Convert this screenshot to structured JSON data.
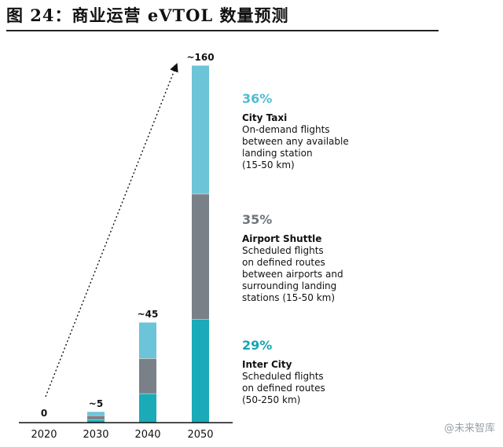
{
  "figure_title": "图 24：商业运营 eVTOL 数量预测",
  "watermark": "@未来智库",
  "colors": {
    "city_taxi": "#6cc4d8",
    "airport_shuttle": "#7a8088",
    "inter_city": "#1aaab8",
    "city_taxi_pct": "#4fbcd1",
    "airport_shuttle_pct": "#6f757d",
    "inter_city_pct": "#14a5b5"
  },
  "segments": [
    {
      "pct": "36%",
      "name": "City Taxi",
      "lines": [
        "On-demand flights",
        "between any available",
        "landing station",
        "(15-50 km)"
      ]
    },
    {
      "pct": "35%",
      "name": "Airport Shuttle",
      "lines": [
        "Scheduled flights",
        "on defined routes",
        "between airports and",
        "surrounding landing",
        "stations (15-50 km)"
      ]
    },
    {
      "pct": "29%",
      "name": "Inter City",
      "lines": [
        "Scheduled flights",
        "on defined routes",
        "(50-250 km)"
      ]
    }
  ],
  "chart_data": {
    "type": "bar",
    "stacked": true,
    "categories": [
      "2020",
      "2030",
      "2040",
      "2050"
    ],
    "total_labels": [
      "0",
      "~5",
      "~45",
      "~160"
    ],
    "totals": [
      0,
      5,
      45,
      160
    ],
    "series": [
      {
        "name": "Inter City",
        "values": [
          0,
          1.45,
          13.05,
          46.4
        ]
      },
      {
        "name": "Airport Shuttle",
        "values": [
          0,
          1.75,
          15.75,
          56.0
        ]
      },
      {
        "name": "City Taxi",
        "values": [
          0,
          1.8,
          16.2,
          57.6
        ]
      }
    ],
    "ylim": [
      0,
      160
    ],
    "grid": false,
    "legend": "right",
    "trend_arrow": true
  }
}
